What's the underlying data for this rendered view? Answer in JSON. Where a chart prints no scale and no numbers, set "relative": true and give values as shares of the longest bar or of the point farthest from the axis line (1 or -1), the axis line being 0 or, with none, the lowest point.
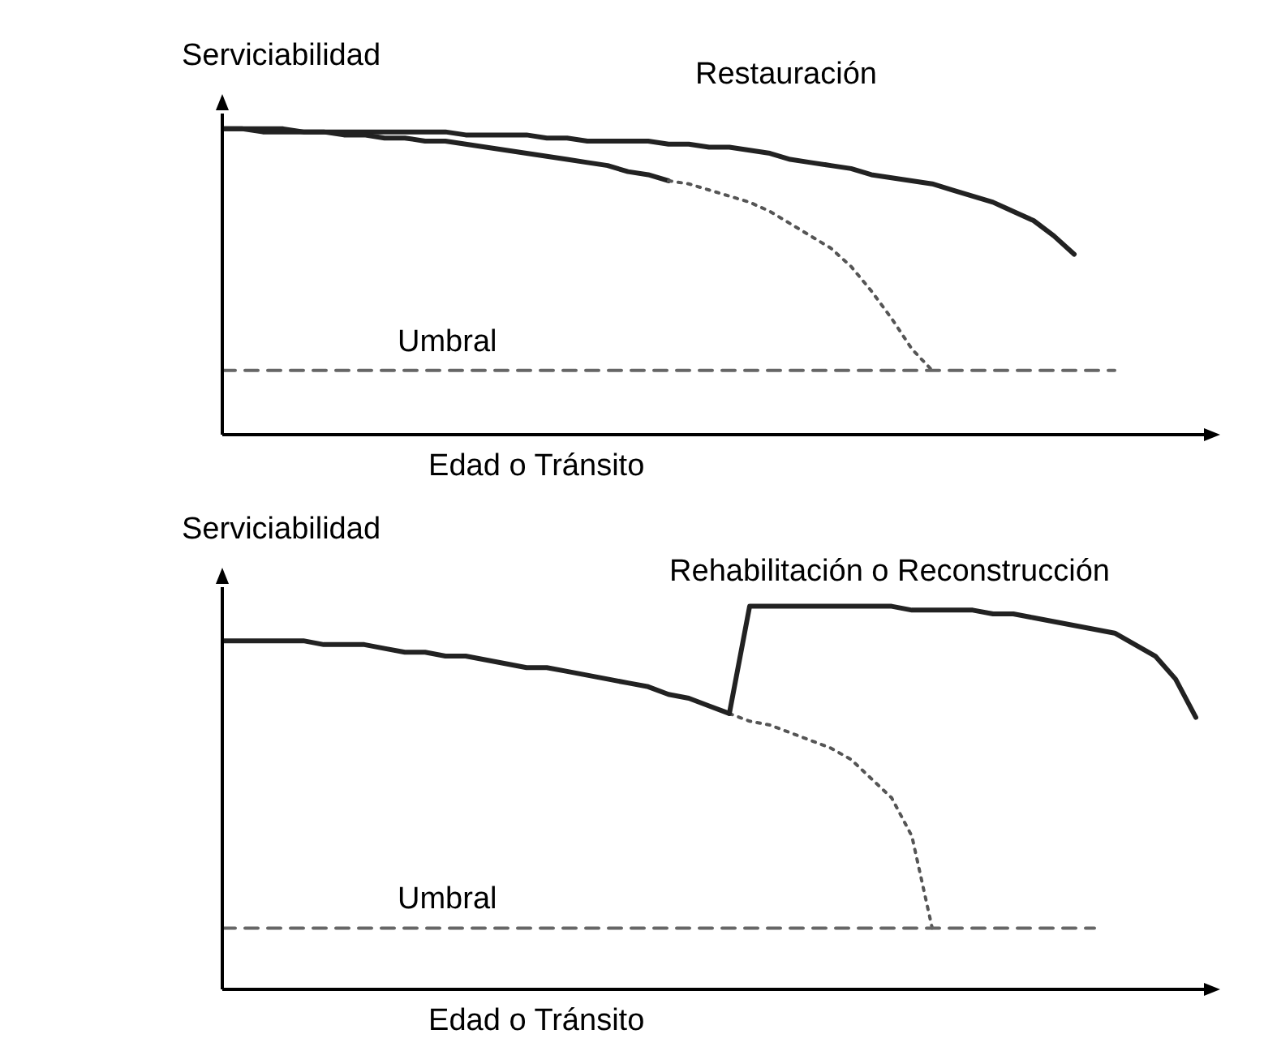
{
  "chart_data": [
    {
      "type": "line",
      "relative": true,
      "ylabel": "Serviciabilidad",
      "xlabel": "Edad o Tránsito",
      "marker": "none",
      "categories": [
        null,
        null,
        null,
        null,
        null,
        null,
        null,
        null,
        null,
        null,
        null,
        null,
        null,
        null,
        null,
        null,
        null,
        null,
        null,
        null,
        null,
        null,
        null,
        null,
        null,
        null,
        null,
        null,
        null,
        null,
        null,
        null,
        null,
        null,
        null,
        null,
        null,
        null,
        null,
        null,
        null,
        null,
        null,
        null,
        null,
        null,
        null,
        null,
        null
      ],
      "series": [
        {
          "name": "Restauración",
          "color": "#222222",
          "line_style": "solid",
          "values": [
            1.0,
            1.0,
            1.0,
            1.0,
            0.99,
            0.99,
            0.99,
            0.99,
            0.99,
            0.99,
            0.99,
            0.99,
            0.98,
            0.98,
            0.98,
            0.98,
            0.97,
            0.97,
            0.96,
            0.96,
            0.96,
            0.96,
            0.95,
            0.95,
            0.94,
            0.94,
            0.93,
            0.92,
            0.9,
            0.89,
            0.88,
            0.87,
            0.85,
            0.84,
            0.83,
            0.82,
            0.8,
            0.78,
            0.76,
            0.73,
            0.7,
            0.65,
            0.59,
            null,
            null,
            null,
            null,
            null,
            null
          ]
        },
        {
          "color": "#222222",
          "line_style": "solid",
          "values": [
            1.0,
            1.0,
            0.99,
            0.99,
            0.99,
            0.99,
            0.98,
            0.98,
            0.97,
            0.97,
            0.96,
            0.96,
            0.95,
            0.94,
            0.93,
            0.92,
            0.91,
            0.9,
            0.89,
            0.88,
            0.86,
            0.85,
            0.83,
            null,
            null,
            null,
            null,
            null,
            null,
            null,
            null,
            null,
            null,
            null,
            null,
            null,
            null,
            null,
            null,
            null,
            null,
            null,
            null,
            null,
            null,
            null,
            null,
            null,
            null
          ]
        },
        {
          "color": "#555555",
          "line_style": "dotted",
          "values": [
            null,
            null,
            null,
            null,
            null,
            null,
            null,
            null,
            null,
            null,
            null,
            null,
            null,
            null,
            null,
            null,
            null,
            null,
            null,
            null,
            null,
            null,
            0.83,
            0.82,
            0.8,
            0.78,
            0.76,
            0.73,
            0.69,
            0.65,
            0.61,
            0.55,
            0.47,
            0.38,
            0.28,
            0.21,
            null,
            null,
            null,
            null,
            null,
            null,
            null,
            null,
            null,
            null,
            null,
            null,
            null
          ]
        },
        {
          "name": "Umbral",
          "color": "#666666",
          "line_style": "dashed",
          "values": [
            0.21,
            0.21,
            0.21,
            0.21,
            0.21,
            0.21,
            0.21,
            0.21,
            0.21,
            0.21,
            0.21,
            0.21,
            0.21,
            0.21,
            0.21,
            0.21,
            0.21,
            0.21,
            0.21,
            0.21,
            0.21,
            0.21,
            0.21,
            0.21,
            0.21,
            0.21,
            0.21,
            0.21,
            0.21,
            0.21,
            0.21,
            0.21,
            0.21,
            0.21,
            0.21,
            0.21,
            0.21,
            0.21,
            0.21,
            0.21,
            0.21,
            0.21,
            0.21,
            0.21,
            0.21,
            null,
            null,
            null,
            null
          ]
        }
      ]
    },
    {
      "type": "line",
      "relative": true,
      "ylabel": "Serviciabilidad",
      "xlabel": "Edad o Tránsito",
      "marker": "none",
      "categories": [
        null,
        null,
        null,
        null,
        null,
        null,
        null,
        null,
        null,
        null,
        null,
        null,
        null,
        null,
        null,
        null,
        null,
        null,
        null,
        null,
        null,
        null,
        null,
        null,
        null,
        null,
        null,
        null,
        null,
        null,
        null,
        null,
        null,
        null,
        null,
        null,
        null,
        null,
        null,
        null,
        null,
        null,
        null,
        null,
        null,
        null,
        null,
        null,
        null
      ],
      "series": [
        {
          "color": "#222222",
          "line_style": "solid",
          "values": [
            0.91,
            0.91,
            0.91,
            0.91,
            0.91,
            0.9,
            0.9,
            0.9,
            0.89,
            0.88,
            0.88,
            0.87,
            0.87,
            0.86,
            0.85,
            0.84,
            0.84,
            0.83,
            0.82,
            0.81,
            0.8,
            0.79,
            0.77,
            0.76,
            0.74,
            0.72,
            null,
            null,
            null,
            null,
            null,
            null,
            null,
            null,
            null,
            null,
            null,
            null,
            null,
            null,
            null,
            null,
            null,
            null,
            null,
            null,
            null,
            null,
            null
          ]
        },
        {
          "color": "#555555",
          "line_style": "dotted",
          "values": [
            null,
            null,
            null,
            null,
            null,
            null,
            null,
            null,
            null,
            null,
            null,
            null,
            null,
            null,
            null,
            null,
            null,
            null,
            null,
            null,
            null,
            null,
            null,
            null,
            null,
            0.72,
            0.7,
            0.69,
            0.67,
            0.65,
            0.63,
            0.6,
            0.55,
            0.5,
            0.4,
            0.16,
            null,
            null,
            null,
            null,
            null,
            null,
            null,
            null,
            null,
            null,
            null,
            null,
            null
          ]
        },
        {
          "name": "Rehabilitación o Reconstrucción",
          "color": "#222222",
          "line_style": "solid",
          "values": [
            null,
            null,
            null,
            null,
            null,
            null,
            null,
            null,
            null,
            null,
            null,
            null,
            null,
            null,
            null,
            null,
            null,
            null,
            null,
            null,
            null,
            null,
            null,
            null,
            null,
            0.72,
            1.0,
            1.0,
            1.0,
            1.0,
            1.0,
            1.0,
            1.0,
            1.0,
            0.99,
            0.99,
            0.99,
            0.99,
            0.98,
            0.98,
            0.97,
            0.96,
            0.95,
            0.94,
            0.93,
            0.9,
            0.87,
            0.81,
            0.71
          ]
        },
        {
          "name": "Umbral",
          "color": "#666666",
          "line_style": "dashed",
          "values": [
            0.16,
            0.16,
            0.16,
            0.16,
            0.16,
            0.16,
            0.16,
            0.16,
            0.16,
            0.16,
            0.16,
            0.16,
            0.16,
            0.16,
            0.16,
            0.16,
            0.16,
            0.16,
            0.16,
            0.16,
            0.16,
            0.16,
            0.16,
            0.16,
            0.16,
            0.16,
            0.16,
            0.16,
            0.16,
            0.16,
            0.16,
            0.16,
            0.16,
            0.16,
            0.16,
            0.16,
            0.16,
            0.16,
            0.16,
            0.16,
            0.16,
            0.16,
            0.16,
            0.16,
            null,
            null,
            null,
            null,
            null
          ]
        }
      ]
    }
  ]
}
